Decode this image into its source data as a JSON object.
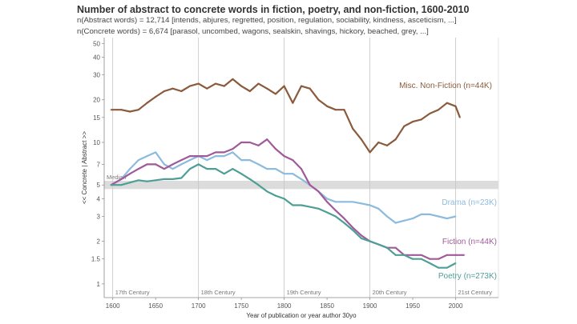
{
  "title": "Number of abstract to concrete words in fiction, poetry, and non-fiction, 1600-2010",
  "subtitle_abstract": "n(Abstract words) =  12,714 [intends, abjures, regretted, position, regulation, sociability, kindness, asceticism,  ...]",
  "subtitle_concrete": "n(Concrete words) = 6,674 [parasol, uncombed, wagons, sealskin, shavings, hickory, beached, grey, ...]",
  "chart_data": {
    "type": "line",
    "title": "Number of abstract to concrete words in fiction, poetry, and non-fiction, 1600-2010",
    "xlabel": "Year of publication or year author 30yo",
    "ylabel": "<< Concrete | Abstract >>",
    "y_scale": "log",
    "xlim": [
      1590,
      2050
    ],
    "ylim": [
      0.8,
      55
    ],
    "x_ticks": [
      1600,
      1650,
      1700,
      1750,
      1800,
      1850,
      1900,
      1950,
      2000
    ],
    "y_ticks": [
      1,
      1.5,
      2,
      3,
      4,
      5,
      7,
      10,
      15,
      20,
      30,
      40,
      50
    ],
    "y_tick_labels": [
      "1",
      "1.5",
      "2",
      "3",
      "4",
      "5",
      "7",
      "10",
      "15",
      "20",
      "30",
      "40",
      "50"
    ],
    "median": {
      "label": "Median",
      "value": 5
    },
    "centuries": [
      {
        "label": "17th Century",
        "x": 1600
      },
      {
        "label": "18th Century",
        "x": 1700
      },
      {
        "label": "19th Century",
        "x": 1800
      },
      {
        "label": "20th Century",
        "x": 1900
      },
      {
        "label": "21st Century",
        "x": 2000
      }
    ],
    "grid": false,
    "series": [
      {
        "name": "Misc. Non-Fiction (n=44K)",
        "color": "#8B5A3C",
        "x": [
          1598,
          1610,
          1620,
          1630,
          1640,
          1650,
          1660,
          1670,
          1680,
          1690,
          1700,
          1710,
          1720,
          1730,
          1740,
          1750,
          1760,
          1770,
          1780,
          1790,
          1800,
          1810,
          1820,
          1830,
          1840,
          1850,
          1860,
          1870,
          1880,
          1890,
          1900,
          1910,
          1920,
          1930,
          1940,
          1950,
          1960,
          1970,
          1980,
          1990,
          2000,
          2005
        ],
        "values": [
          17,
          17,
          16.5,
          17,
          19,
          21,
          23,
          24,
          23,
          25,
          26,
          24,
          26,
          25,
          28,
          25,
          23,
          26,
          24,
          22,
          25,
          19,
          25,
          24,
          20,
          18,
          17,
          17,
          12.5,
          10.5,
          8.5,
          10,
          9.5,
          10.5,
          13,
          14,
          14.5,
          16,
          17,
          19,
          18,
          15
        ]
      },
      {
        "name": "Drama (n=23K)",
        "color": "#8BBBDD",
        "x": [
          1598,
          1610,
          1620,
          1630,
          1640,
          1650,
          1660,
          1670,
          1680,
          1690,
          1700,
          1710,
          1720,
          1730,
          1740,
          1750,
          1760,
          1770,
          1780,
          1790,
          1800,
          1810,
          1820,
          1830,
          1840,
          1850,
          1860,
          1870,
          1880,
          1890,
          1900,
          1910,
          1920,
          1930,
          1940,
          1950,
          1960,
          1970,
          1980,
          1990,
          2000
        ],
        "values": [
          5,
          5.5,
          6.5,
          7.5,
          8,
          8.5,
          7,
          6.5,
          7,
          7.5,
          8,
          7.5,
          8,
          8,
          8.5,
          7.5,
          7.5,
          7,
          6.5,
          6.5,
          6,
          6,
          5.5,
          5,
          4.5,
          4,
          3.8,
          3.8,
          3.8,
          3.7,
          3.6,
          3.4,
          3,
          2.7,
          2.8,
          2.9,
          3.1,
          3.1,
          3.0,
          2.9,
          3.0
        ]
      },
      {
        "name": "Fiction (n=44K)",
        "color": "#A05A9A",
        "x": [
          1598,
          1610,
          1620,
          1630,
          1640,
          1650,
          1660,
          1670,
          1680,
          1690,
          1700,
          1710,
          1720,
          1730,
          1740,
          1750,
          1760,
          1770,
          1780,
          1790,
          1800,
          1810,
          1820,
          1830,
          1840,
          1850,
          1860,
          1870,
          1880,
          1890,
          1900,
          1910,
          1920,
          1930,
          1940,
          1950,
          1960,
          1970,
          1980,
          1990,
          2000,
          2010
        ],
        "values": [
          5,
          5.5,
          6,
          6.5,
          7,
          7,
          6.5,
          7,
          7.5,
          8,
          8,
          8,
          8.5,
          8.5,
          9,
          10,
          10,
          9.5,
          10.5,
          9,
          8,
          7.5,
          6.5,
          5,
          4.5,
          3.8,
          3.3,
          2.9,
          2.5,
          2.2,
          2.0,
          1.9,
          1.8,
          1.8,
          1.6,
          1.6,
          1.6,
          1.5,
          1.5,
          1.6,
          1.6,
          1.6
        ]
      },
      {
        "name": "Poetry (n=273K)",
        "color": "#4E9E96",
        "x": [
          1598,
          1610,
          1620,
          1630,
          1640,
          1650,
          1660,
          1670,
          1680,
          1690,
          1700,
          1710,
          1720,
          1730,
          1740,
          1750,
          1760,
          1770,
          1780,
          1790,
          1800,
          1810,
          1820,
          1830,
          1840,
          1850,
          1860,
          1870,
          1880,
          1890,
          1900,
          1910,
          1920,
          1930,
          1940,
          1950,
          1960,
          1970,
          1980,
          1990,
          2000
        ],
        "values": [
          5,
          5,
          5.2,
          5.4,
          5.3,
          5.4,
          5.5,
          5.5,
          5.6,
          6.5,
          7,
          6.5,
          6.5,
          6,
          6.5,
          6,
          5.5,
          5,
          4.5,
          4.2,
          4,
          3.6,
          3.6,
          3.5,
          3.4,
          3.2,
          3,
          2.7,
          2.4,
          2.1,
          2.0,
          1.9,
          1.8,
          1.6,
          1.6,
          1.5,
          1.5,
          1.4,
          1.3,
          1.3,
          1.4
        ]
      }
    ]
  }
}
